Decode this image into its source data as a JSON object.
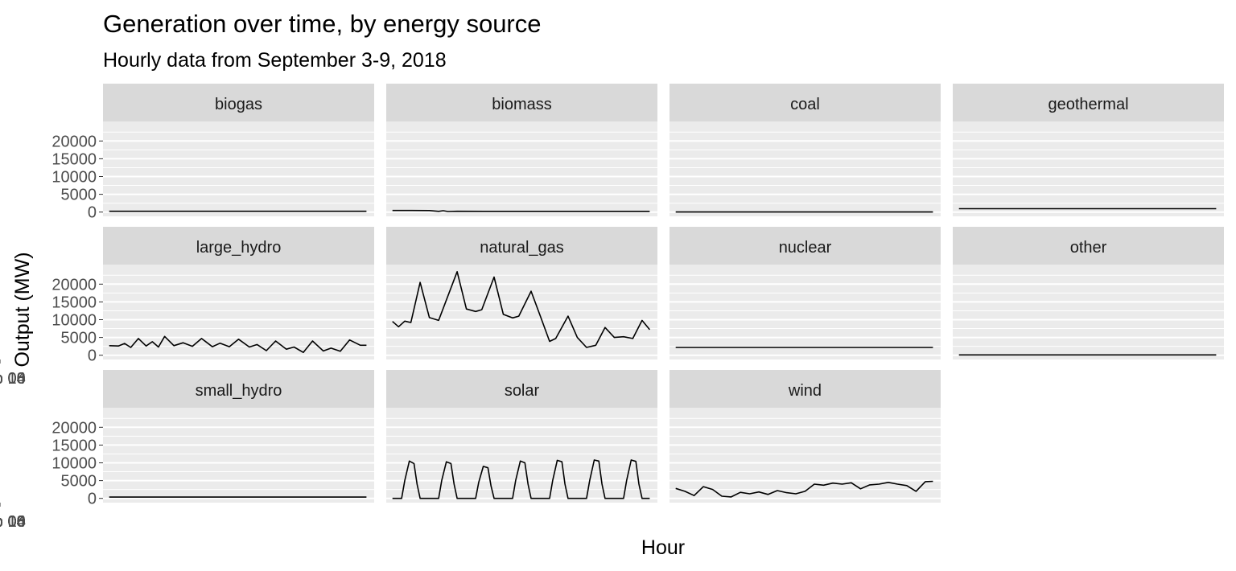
{
  "chart_data": {
    "type": "line",
    "title": "Generation over time, by energy source",
    "subtitle": "Hourly data from September 3-9, 2018",
    "xlabel": "Hour",
    "ylabel": "Output (MW)",
    "xlim": [
      "2018-09-02T20:00",
      "2018-09-10T04:00"
    ],
    "ylim": [
      -1200,
      25500
    ],
    "x_ticks": [
      "2018-09-04",
      "2018-09-06",
      "2018-09-08",
      "2018-09-10"
    ],
    "x_tick_labels": [
      "Sep 04",
      "Sep 06",
      "Sep 08",
      "Sep 10"
    ],
    "y_ticks": [
      0,
      5000,
      10000,
      15000,
      20000
    ],
    "y_tick_labels": [
      "0",
      "5000",
      "10000",
      "15000",
      "20000"
    ],
    "grid": true,
    "legend": "none",
    "series": [
      {
        "name": "biogas",
        "x": [
          "2018-09-03T00:00",
          "2018-09-09T23:00"
        ],
        "values": [
          230,
          230
        ]
      },
      {
        "name": "biomass",
        "x": [
          "2018-09-03T00:00",
          "2018-09-03T12:00",
          "2018-09-04T00:00",
          "2018-09-04T06:00",
          "2018-09-04T09:00",
          "2018-09-04T12:00",
          "2018-09-04T18:00",
          "2018-09-05T12:00",
          "2018-09-09T23:00"
        ],
        "values": [
          450,
          450,
          430,
          200,
          380,
          150,
          220,
          200,
          200
        ]
      },
      {
        "name": "coal",
        "x": [
          "2018-09-03T00:00",
          "2018-09-09T23:00"
        ],
        "values": [
          15,
          15
        ]
      },
      {
        "name": "geothermal",
        "x": [
          "2018-09-03T00:00",
          "2018-09-09T23:00"
        ],
        "values": [
          950,
          950
        ]
      },
      {
        "name": "large_hydro",
        "x": [
          "2018-09-03T00:00",
          "2018-09-03T06:00",
          "2018-09-03T10:00",
          "2018-09-03T14:00",
          "2018-09-03T19:00",
          "2018-09-04T00:00",
          "2018-09-04T04:00",
          "2018-09-04T08:00",
          "2018-09-04T12:00",
          "2018-09-04T18:00",
          "2018-09-05T00:00",
          "2018-09-05T06:00",
          "2018-09-05T12:00",
          "2018-09-05T19:00",
          "2018-09-06T00:00",
          "2018-09-06T06:00",
          "2018-09-06T12:00",
          "2018-09-06T19:00",
          "2018-09-07T00:00",
          "2018-09-07T06:00",
          "2018-09-07T12:00",
          "2018-09-07T19:00",
          "2018-09-08T00:00",
          "2018-09-08T06:00",
          "2018-09-08T12:00",
          "2018-09-08T19:00",
          "2018-09-09T00:00",
          "2018-09-09T06:00",
          "2018-09-09T12:00",
          "2018-09-09T19:00",
          "2018-09-09T23:00"
        ],
        "values": [
          2700,
          2600,
          3300,
          2200,
          4700,
          2600,
          3800,
          2300,
          5300,
          2700,
          3500,
          2500,
          4700,
          2400,
          3400,
          2400,
          4500,
          2300,
          3000,
          1300,
          4000,
          1700,
          2300,
          800,
          4000,
          1200,
          2000,
          1100,
          4300,
          2800,
          2800
        ]
      },
      {
        "name": "natural_gas",
        "x": [
          "2018-09-03T00:00",
          "2018-09-03T04:00",
          "2018-09-03T08:00",
          "2018-09-03T12:00",
          "2018-09-03T18:00",
          "2018-09-04T00:00",
          "2018-09-04T06:00",
          "2018-09-04T18:00",
          "2018-09-05T00:00",
          "2018-09-05T06:00",
          "2018-09-05T10:00",
          "2018-09-05T18:00",
          "2018-09-06T00:00",
          "2018-09-06T06:00",
          "2018-09-06T10:00",
          "2018-09-06T18:00",
          "2018-09-07T00:00",
          "2018-09-07T06:00",
          "2018-09-07T10:00",
          "2018-09-07T18:00",
          "2018-09-08T00:00",
          "2018-09-08T06:00",
          "2018-09-08T12:00",
          "2018-09-08T18:00",
          "2018-09-09T00:00",
          "2018-09-09T06:00",
          "2018-09-09T12:00",
          "2018-09-09T18:00",
          "2018-09-09T23:00"
        ],
        "values": [
          9500,
          8000,
          9600,
          9200,
          20500,
          10600,
          9800,
          23500,
          13000,
          12300,
          12800,
          22000,
          11500,
          10500,
          11000,
          18000,
          11000,
          3900,
          4700,
          11000,
          5000,
          2200,
          2800,
          7800,
          5000,
          5200,
          4700,
          9800,
          7200
        ]
      },
      {
        "name": "nuclear",
        "x": [
          "2018-09-03T00:00",
          "2018-09-09T23:00"
        ],
        "values": [
          2200,
          2200
        ]
      },
      {
        "name": "other",
        "x": [
          "2018-09-03T00:00",
          "2018-09-09T23:00"
        ],
        "values": [
          100,
          100
        ]
      },
      {
        "name": "small_hydro",
        "x": [
          "2018-09-03T00:00",
          "2018-09-09T23:00"
        ],
        "values": [
          350,
          350
        ]
      },
      {
        "name": "solar",
        "x": [
          "2018-09-03T00:00",
          "2018-09-03T06:00",
          "2018-09-03T08:00",
          "2018-09-03T11:00",
          "2018-09-03T14:00",
          "2018-09-03T16:00",
          "2018-09-03T18:00",
          "2018-09-04T06:00",
          "2018-09-04T08:00",
          "2018-09-04T11:00",
          "2018-09-04T14:00",
          "2018-09-04T16:00",
          "2018-09-04T18:00",
          "2018-09-05T06:00",
          "2018-09-05T08:00",
          "2018-09-05T11:00",
          "2018-09-05T14:00",
          "2018-09-05T16:00",
          "2018-09-05T18:00",
          "2018-09-06T06:00",
          "2018-09-06T08:00",
          "2018-09-06T11:00",
          "2018-09-06T14:00",
          "2018-09-06T16:00",
          "2018-09-06T18:00",
          "2018-09-07T06:00",
          "2018-09-07T08:00",
          "2018-09-07T11:00",
          "2018-09-07T14:00",
          "2018-09-07T16:00",
          "2018-09-07T18:00",
          "2018-09-08T06:00",
          "2018-09-08T08:00",
          "2018-09-08T11:00",
          "2018-09-08T14:00",
          "2018-09-08T16:00",
          "2018-09-08T18:00",
          "2018-09-09T06:00",
          "2018-09-09T08:00",
          "2018-09-09T11:00",
          "2018-09-09T14:00",
          "2018-09-09T16:00",
          "2018-09-09T18:00",
          "2018-09-09T23:00"
        ],
        "values": [
          0,
          0,
          5000,
          10500,
          9800,
          4000,
          0,
          0,
          5000,
          10300,
          9800,
          4000,
          0,
          0,
          4500,
          9000,
          8600,
          3500,
          0,
          0,
          5000,
          10500,
          10000,
          4000,
          0,
          0,
          5000,
          10700,
          10300,
          4000,
          0,
          0,
          5000,
          10800,
          10500,
          4000,
          0,
          0,
          5000,
          10800,
          10400,
          4000,
          0,
          0
        ]
      },
      {
        "name": "wind",
        "x": [
          "2018-09-03T00:00",
          "2018-09-03T06:00",
          "2018-09-03T12:00",
          "2018-09-03T18:00",
          "2018-09-04T00:00",
          "2018-09-04T06:00",
          "2018-09-04T12:00",
          "2018-09-04T18:00",
          "2018-09-05T00:00",
          "2018-09-05T06:00",
          "2018-09-05T12:00",
          "2018-09-05T18:00",
          "2018-09-06T00:00",
          "2018-09-06T06:00",
          "2018-09-06T12:00",
          "2018-09-06T18:00",
          "2018-09-07T00:00",
          "2018-09-07T06:00",
          "2018-09-07T12:00",
          "2018-09-07T18:00",
          "2018-09-08T00:00",
          "2018-09-08T06:00",
          "2018-09-08T12:00",
          "2018-09-08T18:00",
          "2018-09-09T00:00",
          "2018-09-09T06:00",
          "2018-09-09T12:00",
          "2018-09-09T18:00",
          "2018-09-09T23:00"
        ],
        "values": [
          2800,
          2000,
          800,
          3300,
          2500,
          600,
          400,
          1700,
          1300,
          1800,
          1100,
          2200,
          1600,
          1300,
          2000,
          4000,
          3700,
          4300,
          4000,
          4400,
          2700,
          3800,
          4000,
          4500,
          4000,
          3600,
          2000,
          4700,
          4800
        ]
      }
    ]
  }
}
